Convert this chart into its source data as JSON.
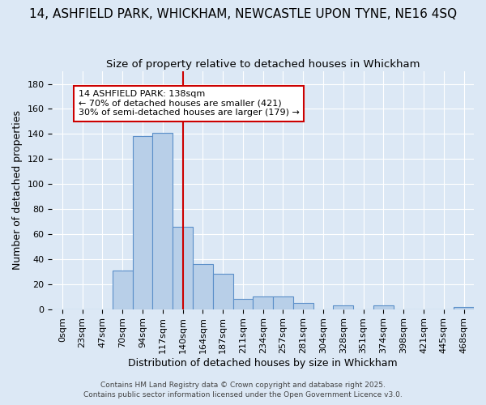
{
  "title1": "14, ASHFIELD PARK, WHICKHAM, NEWCASTLE UPON TYNE, NE16 4SQ",
  "title2": "Size of property relative to detached houses in Whickham",
  "xlabel": "Distribution of detached houses by size in Whickham",
  "ylabel": "Number of detached properties",
  "categories": [
    "0sqm",
    "23sqm",
    "47sqm",
    "70sqm",
    "94sqm",
    "117sqm",
    "140sqm",
    "164sqm",
    "187sqm",
    "211sqm",
    "234sqm",
    "257sqm",
    "281sqm",
    "304sqm",
    "328sqm",
    "351sqm",
    "374sqm",
    "398sqm",
    "421sqm",
    "445sqm",
    "468sqm"
  ],
  "values": [
    0,
    0,
    0,
    31,
    138,
    141,
    66,
    36,
    28,
    8,
    10,
    10,
    5,
    0,
    3,
    0,
    3,
    0,
    0,
    0,
    2
  ],
  "bar_color": "#b8cfe8",
  "bar_edge_color": "#5b8fc9",
  "property_label": "14 ASHFIELD PARK: 138sqm",
  "annotation_line1": "← 70% of detached houses are smaller (421)",
  "annotation_line2": "30% of semi-detached houses are larger (179) →",
  "annotation_box_color": "#ffffff",
  "annotation_box_edge": "#cc0000",
  "vline_color": "#cc0000",
  "vline_x_index": 6,
  "ylim": [
    0,
    190
  ],
  "yticks": [
    0,
    20,
    40,
    60,
    80,
    100,
    120,
    140,
    160,
    180
  ],
  "background_color": "#dce8f5",
  "grid_color": "#ffffff",
  "footer1": "Contains HM Land Registry data © Crown copyright and database right 2025.",
  "footer2": "Contains public sector information licensed under the Open Government Licence v3.0.",
  "title1_fontsize": 11,
  "title2_fontsize": 9.5,
  "axis_fontsize": 8,
  "annot_fontsize": 8,
  "xlabel_fontsize": 9,
  "ylabel_fontsize": 9,
  "footer_fontsize": 6.5
}
